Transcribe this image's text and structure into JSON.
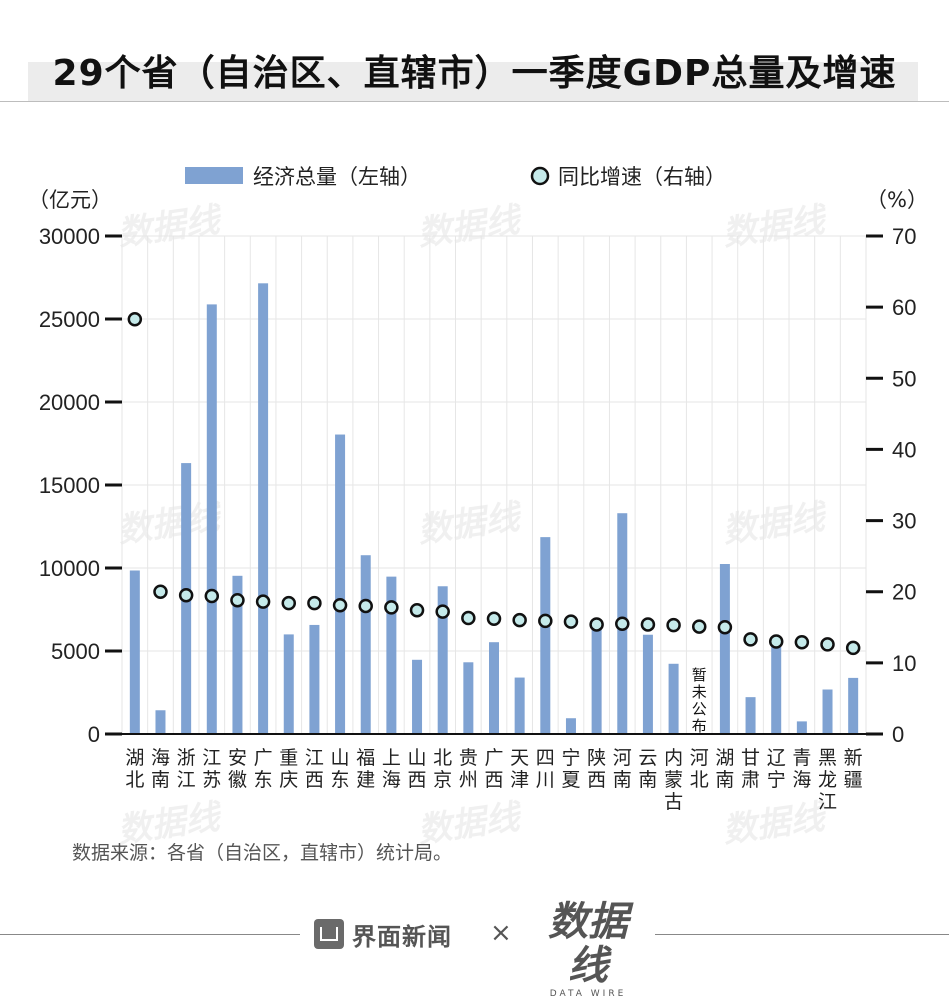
{
  "title": "29个省（自治区、直辖市）一季度GDP总量及增速",
  "legend": {
    "bar_label": "经济总量（左轴）",
    "dot_label": "同比增速（右轴）"
  },
  "axis_units": {
    "left": "（亿元）",
    "right": "（%）"
  },
  "source": "数据来源：各省（自治区，直辖市）统计局。",
  "footer": {
    "brand_jiemian": "界面新闻",
    "times": "×",
    "brand_datawire": "数据线",
    "brand_datawire_sub": "DATA WIRE"
  },
  "watermark": "数据线",
  "colors": {
    "bar": "#7fa2d2",
    "dot_fill": "#c5eaea",
    "dot_stroke": "#111111",
    "grid": "#e6e6e6",
    "axis": "#111111"
  },
  "chart_data": {
    "type": "bar+scatter",
    "categories": [
      "湖北",
      "海南",
      "浙江",
      "江苏",
      "安徽",
      "广东",
      "重庆",
      "江西",
      "山东",
      "福建",
      "上海",
      "山西",
      "北京",
      "贵州",
      "广西",
      "天津",
      "四川",
      "宁夏",
      "陕西",
      "河南",
      "云南",
      "内蒙古",
      "河北",
      "湖南",
      "甘肃",
      "辽宁",
      "青海",
      "黑龙江",
      "新疆"
    ],
    "left_axis": {
      "label": "（亿元）",
      "min": 0,
      "max": 30000,
      "ticks": [
        0,
        5000,
        10000,
        15000,
        20000,
        25000,
        30000
      ]
    },
    "right_axis": {
      "label": "（%）",
      "min": 0,
      "max": 70,
      "ticks": [
        0,
        10,
        20,
        30,
        40,
        50,
        60,
        70
      ]
    },
    "series": [
      {
        "name": "经济总量（左轴）",
        "axis": "left",
        "type": "bar",
        "values": [
          9850,
          1430,
          16320,
          25880,
          9530,
          27150,
          6000,
          6570,
          18040,
          10770,
          9480,
          4470,
          8900,
          4320,
          5530,
          3400,
          11860,
          950,
          6600,
          13300,
          5980,
          4230,
          null,
          10240,
          2220,
          5680,
          760,
          2680,
          3380
        ]
      },
      {
        "name": "同比增速（右轴）",
        "axis": "right",
        "type": "scatter",
        "values": [
          58.3,
          20.0,
          19.5,
          19.4,
          18.8,
          18.6,
          18.4,
          18.4,
          18.1,
          18.0,
          17.8,
          17.4,
          17.2,
          16.3,
          16.2,
          16.0,
          15.9,
          15.8,
          15.4,
          15.5,
          15.4,
          15.3,
          15.1,
          15.0,
          13.3,
          13.0,
          12.9,
          12.6,
          12.1
        ]
      }
    ],
    "annotations": [
      {
        "category": "河北",
        "text": "暂未公布"
      }
    ],
    "grid": true,
    "legend_position": "top"
  }
}
